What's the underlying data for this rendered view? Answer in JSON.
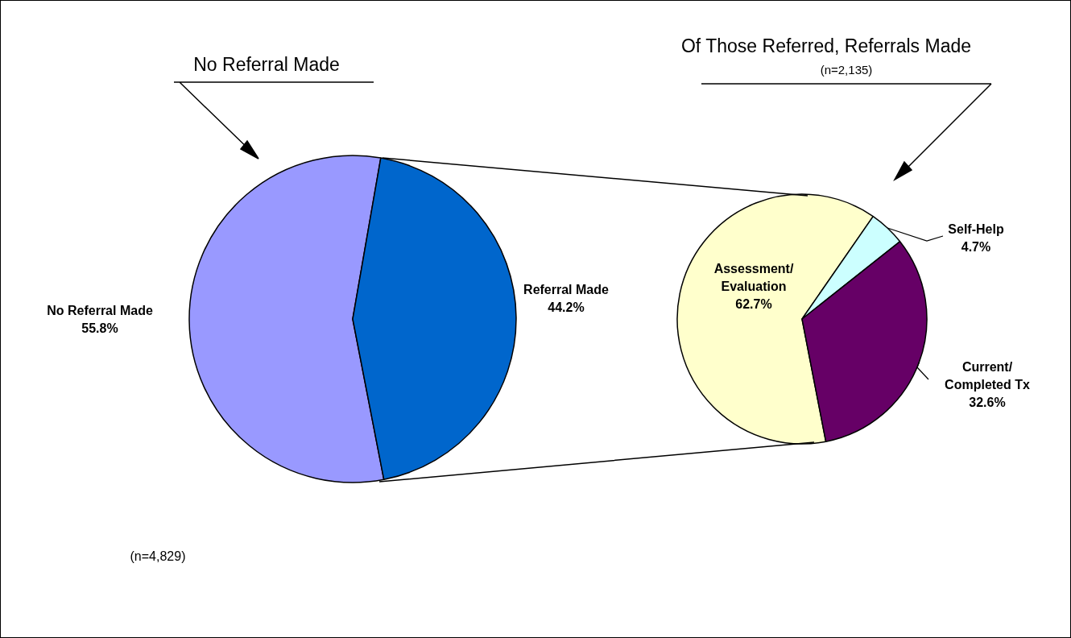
{
  "chart_data": [
    {
      "type": "pie",
      "title": "No Referral Made",
      "categories": [
        "No Referral Made",
        "Referral Made"
      ],
      "values": [
        55.8,
        44.2
      ],
      "value_labels": [
        "55.8%",
        "44.2%"
      ],
      "colors": [
        "#9999ff",
        "#0066cc"
      ],
      "legend": false,
      "annotations": [
        "(n=4,829)"
      ]
    },
    {
      "type": "pie",
      "title": "Of Those Referred, Referrals Made",
      "subtitle": "(n=2,135)",
      "categories": [
        "Assessment/ Evaluation",
        "Self-Help",
        "Current/ Completed Tx"
      ],
      "values": [
        62.7,
        4.7,
        32.6
      ],
      "value_labels": [
        "62.7%",
        "4.7%",
        "32.6%"
      ],
      "colors": [
        "#ffffcc",
        "#ccffff",
        "#660066"
      ],
      "legend": false
    }
  ]
}
